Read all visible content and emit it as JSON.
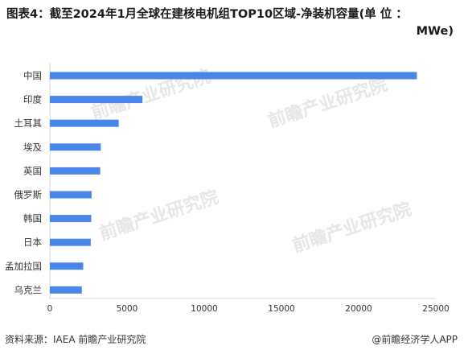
{
  "title": {
    "line1": "图表4：截至2024年1月全球在建核电机组TOP10区域-净装机容量(单 位 ：",
    "line2": "MWe)"
  },
  "chart_data": {
    "type": "bar",
    "orientation": "horizontal",
    "categories": [
      "中国",
      "印度",
      "土耳其",
      "埃及",
      "英国",
      "俄罗斯",
      "韩国",
      "日本",
      "孟加拉国",
      "乌克兰"
    ],
    "values": [
      23770,
      6000,
      4460,
      3300,
      3260,
      2700,
      2680,
      2650,
      2160,
      2070
    ],
    "xlim": [
      0,
      25000
    ],
    "xticks": [
      0,
      5000,
      10000,
      15000,
      20000,
      25000
    ],
    "xtick_labels": [
      "0",
      "5000",
      "10000",
      "15000",
      "20000",
      "25000"
    ],
    "bar_color": "#4a86e8",
    "grid": false
  },
  "watermark": "前瞻产业研究院",
  "footer": {
    "source": "资料来源：IAEA 前瞻产业研究院",
    "brand": "@前瞻经济学人APP"
  }
}
